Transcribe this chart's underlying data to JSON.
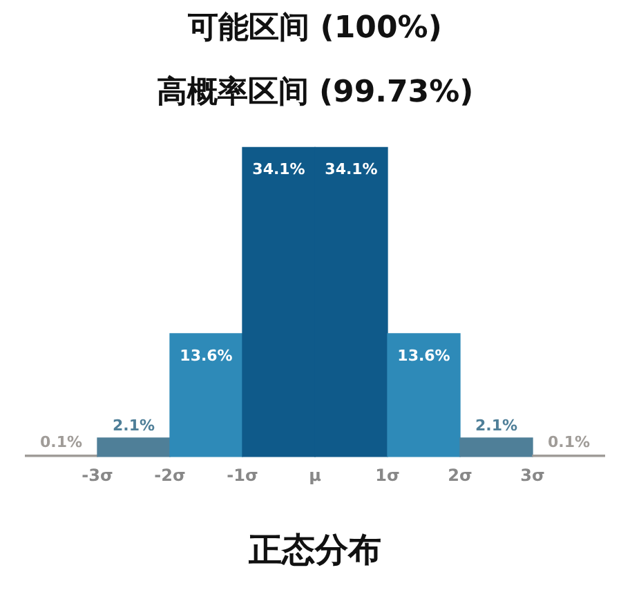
{
  "chart_data": {
    "type": "bar",
    "title": "可能区间 (100%)",
    "subtitle": "高概率区间 (99.73%)",
    "xlabel": "正态分布",
    "categories": [
      null,
      null,
      null,
      null,
      null,
      null,
      null,
      null
    ],
    "values": [
      0.1,
      2.1,
      13.6,
      34.1,
      34.1,
      13.6,
      2.1,
      0.1
    ],
    "value_labels": [
      "0.1%",
      "2.1%",
      "13.6%",
      "34.1%",
      "34.1%",
      "13.6%",
      "2.1%",
      "0.1%"
    ],
    "colors": [
      "#a09c98",
      "#4f7f98",
      "#2e8ab8",
      "#0f5a8a",
      "#0f5a8a",
      "#2e8ab8",
      "#4f7f98",
      "#a09c98"
    ],
    "annotations": [
      "-3σ",
      "-2σ",
      "-1σ",
      "μ",
      "1σ",
      "2σ",
      "3σ"
    ],
    "tick_labels": "x",
    "grid": false,
    "legend": false
  }
}
